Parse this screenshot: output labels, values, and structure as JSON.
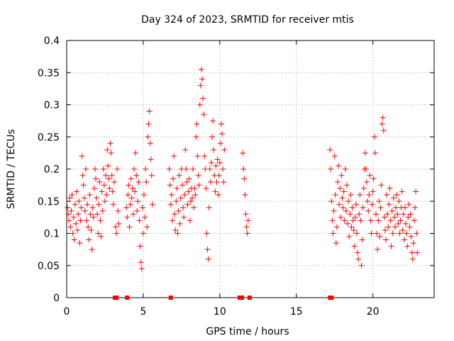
{
  "colors": {
    "marker": "#ff0000",
    "grid": "#a0a0a0",
    "axis": "#000000",
    "background": "#ffffff"
  },
  "chart_data": {
    "type": "scatter",
    "title": "Day 324 of 2023, SRMTID for receiver mtis",
    "xlabel": "GPS time / hours",
    "ylabel": "SRMTID / TECUs",
    "xlim": [
      0,
      24
    ],
    "ylim": [
      0,
      0.4
    ],
    "xticks": [
      0,
      5,
      10,
      15,
      20
    ],
    "xtick_labels": [
      "0",
      "5",
      "10",
      "15",
      "20"
    ],
    "yticks": [
      0,
      0.05,
      0.1,
      0.15,
      0.2,
      0.25,
      0.3,
      0.35,
      0.4
    ],
    "ytick_labels": [
      "0",
      "0.05",
      "0.1",
      "0.15",
      "0.2",
      "0.25",
      "0.3",
      "0.35",
      "0.4"
    ],
    "grid": true,
    "marker": "+",
    "series": [
      {
        "name": "SRMTID",
        "points": [
          [
            0.05,
            0.14
          ],
          [
            0.1,
            0.13
          ],
          [
            0.15,
            0.12
          ],
          [
            0.2,
            0.155
          ],
          [
            0.25,
            0.11
          ],
          [
            0.3,
            0.135
          ],
          [
            0.35,
            0.16
          ],
          [
            0.4,
            0.1
          ],
          [
            0.45,
            0.125
          ],
          [
            0.5,
            0.09
          ],
          [
            0.55,
            0.145
          ],
          [
            0.6,
            0.115
          ],
          [
            0.65,
            0.165
          ],
          [
            0.7,
            0.105
          ],
          [
            0.75,
            0.13
          ],
          [
            0.8,
            0.15
          ],
          [
            0.85,
            0.085
          ],
          [
            0.9,
            0.12
          ],
          [
            0.95,
            0.14
          ],
          [
            1.0,
            0.22
          ],
          [
            1.05,
            0.19
          ],
          [
            1.1,
            0.175
          ],
          [
            1.15,
            0.155
          ],
          [
            1.2,
            0.135
          ],
          [
            1.25,
            0.2
          ],
          [
            1.3,
            0.12
          ],
          [
            1.35,
            0.145
          ],
          [
            1.4,
            0.11
          ],
          [
            1.45,
            0.09
          ],
          [
            1.5,
            0.16
          ],
          [
            1.55,
            0.13
          ],
          [
            1.6,
            0.105
          ],
          [
            1.65,
            0.075
          ],
          [
            1.7,
            0.14
          ],
          [
            1.75,
            0.125
          ],
          [
            1.8,
            0.17
          ],
          [
            1.85,
            0.2
          ],
          [
            1.9,
            0.185
          ],
          [
            1.95,
            0.155
          ],
          [
            2.0,
            0.13
          ],
          [
            2.05,
            0.1
          ],
          [
            2.1,
            0.145
          ],
          [
            2.15,
            0.18
          ],
          [
            2.2,
            0.12
          ],
          [
            2.25,
            0.095
          ],
          [
            2.3,
            0.165
          ],
          [
            2.35,
            0.135
          ],
          [
            2.4,
            0.2
          ],
          [
            2.45,
            0.175
          ],
          [
            2.5,
            0.15
          ],
          [
            2.55,
            0.19
          ],
          [
            2.6,
            0.16
          ],
          [
            2.65,
            0.23
          ],
          [
            2.7,
            0.205
          ],
          [
            2.75,
            0.185
          ],
          [
            2.8,
            0.17
          ],
          [
            2.85,
            0.24
          ],
          [
            2.9,
            0.225
          ],
          [
            2.95,
            0.19
          ],
          [
            3.0,
            0.165
          ],
          [
            3.05,
            0.145
          ],
          [
            3.1,
            0.18
          ],
          [
            3.2,
            0.11
          ],
          [
            3.25,
            0.1
          ],
          [
            3.3,
            0.2
          ],
          [
            3.35,
            0.135
          ],
          [
            3.4,
            0.115
          ],
          [
            3.9,
            0.14
          ],
          [
            3.95,
            0.125
          ],
          [
            4.0,
            0.16
          ],
          [
            4.05,
            0.175
          ],
          [
            4.1,
            0.11
          ],
          [
            4.15,
            0.145
          ],
          [
            4.2,
            0.185
          ],
          [
            4.25,
            0.155
          ],
          [
            4.3,
            0.17
          ],
          [
            4.35,
            0.13
          ],
          [
            4.4,
            0.2
          ],
          [
            4.45,
            0.165
          ],
          [
            4.5,
            0.225
          ],
          [
            4.55,
            0.19
          ],
          [
            4.6,
            0.135
          ],
          [
            4.65,
            0.15
          ],
          [
            4.7,
            0.18
          ],
          [
            4.75,
            0.12
          ],
          [
            4.8,
            0.08
          ],
          [
            4.85,
            0.055
          ],
          [
            4.9,
            0.045
          ],
          [
            4.95,
            0.14
          ],
          [
            5.0,
            0.1
          ],
          [
            5.05,
            0.16
          ],
          [
            5.1,
            0.125
          ],
          [
            5.15,
            0.2
          ],
          [
            5.2,
            0.18
          ],
          [
            5.25,
            0.11
          ],
          [
            5.3,
            0.25
          ],
          [
            5.35,
            0.27
          ],
          [
            5.4,
            0.29
          ],
          [
            5.45,
            0.24
          ],
          [
            5.5,
            0.215
          ],
          [
            5.55,
            0.19
          ],
          [
            5.6,
            0.145
          ],
          [
            6.7,
            0.2
          ],
          [
            6.75,
            0.175
          ],
          [
            6.8,
            0.145
          ],
          [
            6.85,
            0.16
          ],
          [
            6.9,
            0.12
          ],
          [
            6.95,
            0.185
          ],
          [
            7.0,
            0.22
          ],
          [
            7.05,
            0.13
          ],
          [
            7.1,
            0.105
          ],
          [
            7.15,
            0.15
          ],
          [
            7.2,
            0.17
          ],
          [
            7.25,
            0.1
          ],
          [
            7.3,
            0.135
          ],
          [
            7.35,
            0.19
          ],
          [
            7.4,
            0.115
          ],
          [
            7.45,
            0.155
          ],
          [
            7.5,
            0.2
          ],
          [
            7.55,
            0.175
          ],
          [
            7.6,
            0.14
          ],
          [
            7.65,
            0.125
          ],
          [
            7.7,
            0.16
          ],
          [
            7.75,
            0.23
          ],
          [
            7.8,
            0.2
          ],
          [
            7.85,
            0.18
          ],
          [
            7.9,
            0.145
          ],
          [
            7.95,
            0.165
          ],
          [
            8.0,
            0.185
          ],
          [
            8.05,
            0.12
          ],
          [
            8.1,
            0.15
          ],
          [
            8.15,
            0.17
          ],
          [
            8.2,
            0.155
          ],
          [
            8.25,
            0.2
          ],
          [
            8.3,
            0.14
          ],
          [
            8.35,
            0.17
          ],
          [
            8.4,
            0.16
          ],
          [
            8.45,
            0.25
          ],
          [
            8.5,
            0.27
          ],
          [
            8.55,
            0.22
          ],
          [
            8.6,
            0.19
          ],
          [
            8.65,
            0.175
          ],
          [
            8.7,
            0.3
          ],
          [
            8.75,
            0.33
          ],
          [
            8.8,
            0.355
          ],
          [
            8.85,
            0.34
          ],
          [
            8.9,
            0.31
          ],
          [
            8.95,
            0.285
          ],
          [
            9.0,
            0.22
          ],
          [
            9.05,
            0.2
          ],
          [
            9.1,
            0.17
          ],
          [
            9.15,
            0.1
          ],
          [
            9.2,
            0.075
          ],
          [
            9.25,
            0.06
          ],
          [
            9.3,
            0.14
          ],
          [
            9.35,
            0.2
          ],
          [
            9.4,
            0.18
          ],
          [
            9.45,
            0.21
          ],
          [
            9.5,
            0.25
          ],
          [
            9.55,
            0.275
          ],
          [
            9.6,
            0.23
          ],
          [
            9.65,
            0.19
          ],
          [
            9.7,
            0.165
          ],
          [
            9.75,
            0.205
          ],
          [
            9.8,
            0.18
          ],
          [
            9.85,
            0.215
          ],
          [
            9.9,
            0.16
          ],
          [
            9.95,
            0.19
          ],
          [
            10.0,
            0.21
          ],
          [
            10.05,
            0.24
          ],
          [
            10.1,
            0.27
          ],
          [
            10.15,
            0.255
          ],
          [
            10.2,
            0.2
          ],
          [
            10.25,
            0.18
          ],
          [
            10.3,
            0.23
          ],
          [
            11.5,
            0.225
          ],
          [
            11.55,
            0.2
          ],
          [
            11.6,
            0.185
          ],
          [
            11.65,
            0.16
          ],
          [
            11.7,
            0.13
          ],
          [
            11.75,
            0.11
          ],
          [
            11.8,
            0.1
          ],
          [
            11.85,
            0.12
          ],
          [
            17.2,
            0.23
          ],
          [
            17.25,
            0.2
          ],
          [
            17.3,
            0.15
          ],
          [
            17.35,
            0.12
          ],
          [
            17.4,
            0.1
          ],
          [
            17.45,
            0.135
          ],
          [
            17.5,
            0.22
          ],
          [
            17.55,
            0.16
          ],
          [
            17.6,
            0.085
          ],
          [
            17.65,
            0.11
          ],
          [
            17.7,
            0.18
          ],
          [
            17.75,
            0.205
          ],
          [
            17.8,
            0.145
          ],
          [
            17.85,
            0.17
          ],
          [
            17.9,
            0.125
          ],
          [
            17.95,
            0.19
          ],
          [
            18.0,
            0.155
          ],
          [
            18.05,
            0.14
          ],
          [
            18.1,
            0.165
          ],
          [
            18.15,
            0.12
          ],
          [
            18.2,
            0.2
          ],
          [
            18.25,
            0.135
          ],
          [
            18.3,
            0.175
          ],
          [
            18.35,
            0.115
          ],
          [
            18.4,
            0.15
          ],
          [
            18.45,
            0.095
          ],
          [
            18.5,
            0.13
          ],
          [
            18.55,
            0.16
          ],
          [
            18.6,
            0.11
          ],
          [
            18.65,
            0.14
          ],
          [
            18.7,
            0.12
          ],
          [
            18.75,
            0.105
          ],
          [
            18.8,
            0.08
          ],
          [
            18.85,
            0.125
          ],
          [
            18.9,
            0.145
          ],
          [
            18.95,
            0.1
          ],
          [
            19.0,
            0.07
          ],
          [
            19.05,
            0.06
          ],
          [
            19.1,
            0.13
          ],
          [
            19.15,
            0.16
          ],
          [
            19.2,
            0.12
          ],
          [
            19.25,
            0.05
          ],
          [
            19.3,
            0.09
          ],
          [
            19.35,
            0.14
          ],
          [
            19.4,
            0.17
          ],
          [
            19.45,
            0.2
          ],
          [
            19.5,
            0.225
          ],
          [
            19.55,
            0.2
          ],
          [
            19.6,
            0.18
          ],
          [
            19.65,
            0.15
          ],
          [
            19.7,
            0.135
          ],
          [
            19.75,
            0.16
          ],
          [
            19.8,
            0.19
          ],
          [
            19.85,
            0.12
          ],
          [
            19.9,
            0.1
          ],
          [
            19.95,
            0.145
          ],
          [
            20.0,
            0.165
          ],
          [
            20.05,
            0.185
          ],
          [
            20.1,
            0.25
          ],
          [
            20.15,
            0.225
          ],
          [
            20.2,
            0.13
          ],
          [
            20.25,
            0.1
          ],
          [
            20.3,
            0.075
          ],
          [
            20.35,
            0.12
          ],
          [
            20.4,
            0.15
          ],
          [
            20.45,
            0.095
          ],
          [
            20.5,
            0.14
          ],
          [
            20.55,
            0.175
          ],
          [
            20.6,
            0.27
          ],
          [
            20.65,
            0.28
          ],
          [
            20.7,
            0.26
          ],
          [
            20.75,
            0.125
          ],
          [
            20.8,
            0.105
          ],
          [
            20.85,
            0.09
          ],
          [
            20.9,
            0.16
          ],
          [
            20.95,
            0.13
          ],
          [
            21.0,
            0.11
          ],
          [
            21.05,
            0.145
          ],
          [
            21.1,
            0.17
          ],
          [
            21.15,
            0.12
          ],
          [
            21.2,
            0.08
          ],
          [
            21.25,
            0.135
          ],
          [
            21.3,
            0.1
          ],
          [
            21.35,
            0.155
          ],
          [
            21.4,
            0.125
          ],
          [
            21.45,
            0.11
          ],
          [
            21.5,
            0.14
          ],
          [
            21.55,
            0.16
          ],
          [
            21.6,
            0.13
          ],
          [
            21.65,
            0.115
          ],
          [
            21.7,
            0.15
          ],
          [
            21.75,
            0.1
          ],
          [
            21.8,
            0.12
          ],
          [
            21.85,
            0.14
          ],
          [
            21.9,
            0.165
          ],
          [
            21.95,
            0.105
          ],
          [
            22.0,
            0.13
          ],
          [
            22.05,
            0.09
          ],
          [
            22.1,
            0.14
          ],
          [
            22.15,
            0.115
          ],
          [
            22.2,
            0.1
          ],
          [
            22.25,
            0.08
          ],
          [
            22.3,
            0.125
          ],
          [
            22.35,
            0.145
          ],
          [
            22.4,
            0.11
          ],
          [
            22.45,
            0.13
          ],
          [
            22.5,
            0.095
          ],
          [
            22.55,
            0.07
          ],
          [
            22.6,
            0.06
          ],
          [
            22.65,
            0.085
          ],
          [
            22.7,
            0.12
          ],
          [
            22.75,
            0.14
          ],
          [
            22.8,
            0.165
          ],
          [
            22.85,
            0.1
          ],
          [
            22.9,
            0.07
          ]
        ]
      },
      {
        "name": "zero-level markers",
        "points": [
          [
            3.15,
            0
          ],
          [
            3.25,
            0
          ],
          [
            3.95,
            0
          ],
          [
            6.8,
            0
          ],
          [
            11.3,
            0
          ],
          [
            11.45,
            0
          ],
          [
            11.95,
            0
          ],
          [
            17.2,
            0
          ],
          [
            17.3,
            0
          ]
        ]
      }
    ]
  }
}
